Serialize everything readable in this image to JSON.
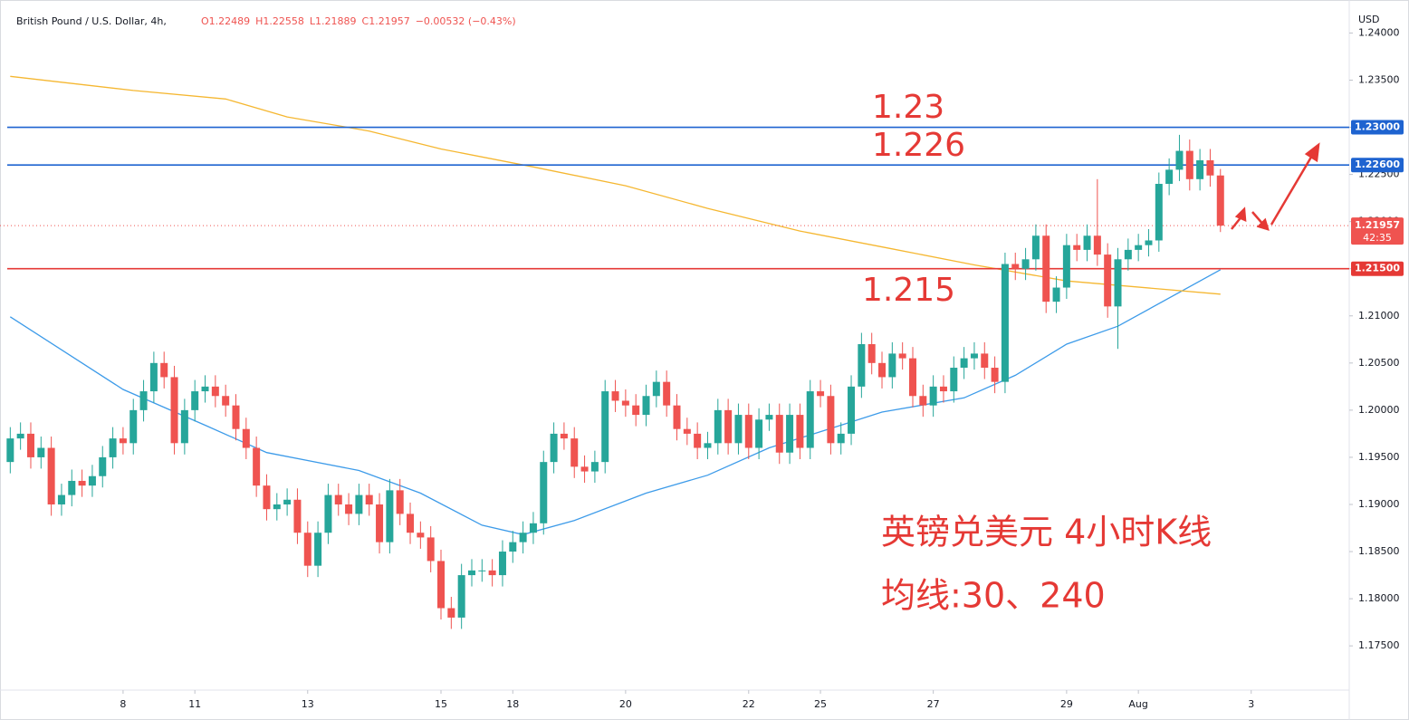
{
  "chart_data": {
    "type": "candlestick",
    "symbol": "British Pound / U.S. Dollar, 4h,",
    "ohlc_text": [
      "O1.22489",
      "H1.22558",
      "L1.21889",
      "C1.21957",
      "−0.00532 (−0.43%)"
    ],
    "currency": "USD",
    "up_color": "#26a69a",
    "down_color": "#ef5350",
    "xlim": [
      -1,
      131
    ],
    "xticks": [
      {
        "value": 11,
        "label": "8"
      },
      {
        "value": 18,
        "label": "11"
      },
      {
        "value": 29,
        "label": "13"
      },
      {
        "value": 42,
        "label": "15"
      },
      {
        "value": 49,
        "label": "18"
      },
      {
        "value": 60,
        "label": "20"
      },
      {
        "value": 72,
        "label": "22"
      },
      {
        "value": 79,
        "label": "25"
      },
      {
        "value": 90,
        "label": "27"
      },
      {
        "value": 103,
        "label": "29"
      },
      {
        "value": 110,
        "label": "Aug"
      },
      {
        "value": 121,
        "label": "3"
      }
    ],
    "ylim": [
      1.1705,
      1.2435
    ],
    "yticks": [
      {
        "value": 1.24,
        "label": "1.24000"
      },
      {
        "value": 1.235,
        "label": "1.23500"
      },
      {
        "value": 1.23,
        "label": "1.23000"
      },
      {
        "value": 1.225,
        "label": "1.22500"
      },
      {
        "value": 1.22,
        "label": "1.22000"
      },
      {
        "value": 1.215,
        "label": "1.21500"
      },
      {
        "value": 1.21,
        "label": "1.21000"
      },
      {
        "value": 1.205,
        "label": "1.20500"
      },
      {
        "value": 1.2,
        "label": "1.20000"
      },
      {
        "value": 1.195,
        "label": "1.19500"
      },
      {
        "value": 1.19,
        "label": "1.19000"
      },
      {
        "value": 1.185,
        "label": "1.18500"
      },
      {
        "value": 1.18,
        "label": "1.18000"
      },
      {
        "value": 1.175,
        "label": "1.17500"
      }
    ],
    "grid": false,
    "open": [
      1.1945,
      1.197,
      1.1975,
      1.195,
      1.196,
      1.19,
      1.191,
      1.1925,
      1.192,
      1.193,
      1.195,
      1.197,
      1.1965,
      1.2,
      1.202,
      1.205,
      1.2035,
      1.1965,
      1.2,
      1.202,
      1.2025,
      1.2015,
      1.2005,
      1.198,
      1.196,
      1.192,
      1.1895,
      1.19,
      1.1905,
      1.187,
      1.1835,
      1.187,
      1.191,
      1.19,
      1.189,
      1.191,
      1.19,
      1.186,
      1.1915,
      1.189,
      1.187,
      1.1865,
      1.184,
      1.179,
      1.178,
      1.1825,
      1.183,
      1.183,
      1.1825,
      1.185,
      1.186,
      1.187,
      1.188,
      1.1945,
      1.1975,
      1.197,
      1.194,
      1.1935,
      1.1945,
      1.202,
      1.201,
      1.2005,
      1.1995,
      1.2015,
      1.203,
      1.2005,
      1.198,
      1.1975,
      1.196,
      1.1965,
      1.2,
      1.1965,
      1.1995,
      1.196,
      1.199,
      1.1995,
      1.1955,
      1.1995,
      1.196,
      1.202,
      1.2015,
      1.1965,
      1.1975,
      1.2025,
      1.207,
      1.205,
      1.2035,
      1.206,
      1.2055,
      1.2015,
      1.2005,
      1.2025,
      1.202,
      1.2045,
      1.2055,
      1.206,
      1.2045,
      1.203,
      1.2155,
      1.215,
      1.216,
      1.2185,
      1.2115,
      1.213,
      1.2175,
      1.217,
      1.2185,
      1.2165,
      1.211,
      1.216,
      1.217,
      1.2175,
      1.218,
      1.224,
      1.2255,
      1.2275,
      1.2245,
      1.2265,
      1.22489
    ],
    "high": [
      1.1982,
      1.1987,
      1.1987,
      1.1972,
      1.1972,
      1.1922,
      1.1937,
      1.1937,
      1.1942,
      1.1962,
      1.1982,
      1.1982,
      1.2012,
      1.2032,
      1.2062,
      1.2062,
      1.2047,
      1.2012,
      1.2032,
      1.2037,
      1.2037,
      1.2027,
      1.2017,
      1.1992,
      1.1972,
      1.1932,
      1.1912,
      1.1917,
      1.1917,
      1.1882,
      1.1882,
      1.1922,
      1.1922,
      1.1912,
      1.1922,
      1.1922,
      1.1912,
      1.1927,
      1.1927,
      1.1902,
      1.1882,
      1.1877,
      1.1852,
      1.1802,
      1.1837,
      1.1842,
      1.1842,
      1.1842,
      1.1862,
      1.1872,
      1.1882,
      1.1892,
      1.1957,
      1.1987,
      1.1987,
      1.1982,
      1.1952,
      1.1957,
      1.2032,
      1.2032,
      1.2022,
      1.2017,
      1.2027,
      1.2042,
      1.2042,
      1.2017,
      1.1992,
      1.1987,
      1.1977,
      1.2012,
      1.2012,
      1.2007,
      1.2007,
      1.2002,
      1.2007,
      1.2007,
      1.2007,
      1.2007,
      1.2032,
      1.2032,
      1.2027,
      1.1987,
      1.2037,
      1.2082,
      1.2082,
      1.2062,
      1.2072,
      1.2072,
      1.2067,
      1.2027,
      1.2037,
      1.2037,
      1.2057,
      1.2067,
      1.2072,
      1.2072,
      1.2057,
      1.2167,
      1.2167,
      1.2172,
      1.2197,
      1.2197,
      1.2142,
      1.2187,
      1.2187,
      1.2197,
      1.2245,
      1.2177,
      1.2172,
      1.2182,
      1.2187,
      1.2192,
      1.2252,
      1.2267,
      1.2292,
      1.2287,
      1.2277,
      1.2277,
      1.22558
    ],
    "low": [
      1.1933,
      1.1958,
      1.1938,
      1.1938,
      1.1888,
      1.1888,
      1.1898,
      1.1908,
      1.1908,
      1.1918,
      1.1938,
      1.1953,
      1.1953,
      1.1988,
      1.2008,
      1.2023,
      1.1953,
      1.1953,
      1.1988,
      1.2008,
      1.2003,
      1.1993,
      1.1968,
      1.1948,
      1.1908,
      1.1883,
      1.1883,
      1.1888,
      1.1858,
      1.1823,
      1.1823,
      1.1858,
      1.1888,
      1.1878,
      1.1878,
      1.1888,
      1.1848,
      1.1848,
      1.1878,
      1.1858,
      1.1853,
      1.1828,
      1.1778,
      1.1768,
      1.1768,
      1.1813,
      1.1818,
      1.1813,
      1.1813,
      1.1838,
      1.1848,
      1.1858,
      1.1868,
      1.1933,
      1.1958,
      1.1928,
      1.1923,
      1.1923,
      1.1933,
      1.1998,
      1.1993,
      1.1983,
      1.1983,
      1.2003,
      1.1993,
      1.1968,
      1.1963,
      1.1948,
      1.1948,
      1.1953,
      1.1953,
      1.1953,
      1.1948,
      1.1948,
      1.1978,
      1.1943,
      1.1943,
      1.1948,
      1.1948,
      1.2003,
      1.1953,
      1.1953,
      1.1963,
      1.2013,
      1.2038,
      1.2023,
      1.2023,
      1.2043,
      1.2003,
      1.1993,
      1.1993,
      1.2008,
      1.2008,
      1.2033,
      1.2043,
      1.2033,
      1.2018,
      1.2018,
      1.2138,
      1.2138,
      1.2148,
      1.2103,
      1.2103,
      1.2118,
      1.2158,
      1.2158,
      1.2153,
      1.2098,
      1.2065,
      1.2148,
      1.2158,
      1.2163,
      1.2168,
      1.2228,
      1.2243,
      1.2233,
      1.2233,
      1.2237,
      1.21889
    ],
    "close": [
      1.197,
      1.1975,
      1.195,
      1.196,
      1.19,
      1.191,
      1.1925,
      1.192,
      1.193,
      1.195,
      1.197,
      1.1965,
      1.2,
      1.202,
      1.205,
      1.2035,
      1.1965,
      1.2,
      1.202,
      1.2025,
      1.2015,
      1.2005,
      1.198,
      1.196,
      1.192,
      1.1895,
      1.19,
      1.1905,
      1.187,
      1.1835,
      1.187,
      1.191,
      1.19,
      1.189,
      1.191,
      1.19,
      1.186,
      1.1915,
      1.189,
      1.187,
      1.1865,
      1.184,
      1.179,
      1.178,
      1.1825,
      1.183,
      1.183,
      1.1825,
      1.185,
      1.186,
      1.187,
      1.188,
      1.1945,
      1.1975,
      1.197,
      1.194,
      1.1935,
      1.1945,
      1.202,
      1.201,
      1.2005,
      1.1995,
      1.2015,
      1.203,
      1.2005,
      1.198,
      1.1975,
      1.196,
      1.1965,
      1.2,
      1.1965,
      1.1995,
      1.196,
      1.199,
      1.1995,
      1.1955,
      1.1995,
      1.196,
      1.202,
      1.2015,
      1.1965,
      1.1975,
      1.2025,
      1.207,
      1.205,
      1.2035,
      1.206,
      1.2055,
      1.2015,
      1.2005,
      1.2025,
      1.202,
      1.2045,
      1.2055,
      1.206,
      1.2045,
      1.203,
      1.2155,
      1.215,
      1.216,
      1.2185,
      1.2115,
      1.213,
      1.2175,
      1.217,
      1.2185,
      1.2165,
      1.211,
      1.216,
      1.217,
      1.2175,
      1.218,
      1.224,
      1.2255,
      1.2275,
      1.2245,
      1.2265,
      1.22489,
      1.21957
    ],
    "ma_lines": [
      {
        "color": "#3d9be9",
        "x": [
          0,
          11,
          19,
          25,
          34,
          40,
          46,
          50,
          55,
          62,
          68,
          74,
          81,
          85,
          93,
          98,
          103,
          108,
          118
        ],
        "values": [
          1.2099,
          1.2022,
          1.1984,
          1.1955,
          1.1936,
          1.1912,
          1.1878,
          1.1868,
          1.1883,
          1.1912,
          1.1931,
          1.196,
          1.1984,
          1.1998,
          1.2013,
          1.2037,
          1.207,
          1.2089,
          1.2149
        ]
      },
      {
        "color": "#f5b731",
        "x": [
          0,
          12,
          21,
          27,
          35,
          42,
          51,
          60,
          68,
          77,
          86,
          94,
          103,
          118
        ],
        "values": [
          1.2354,
          1.2339,
          1.233,
          1.2311,
          1.2296,
          1.2277,
          1.2258,
          1.2238,
          1.2214,
          1.219,
          1.2171,
          1.2154,
          1.2137,
          1.2123
        ]
      }
    ],
    "levels": [
      {
        "value": 1.23,
        "label": "1.23000",
        "annotation": "1.23",
        "color": "#1e63d0"
      },
      {
        "value": 1.226,
        "label": "1.22600",
        "annotation": "1.226",
        "color": "#1e63d0"
      },
      {
        "value": 1.215,
        "label": "1.21500",
        "annotation": "1.215",
        "color": "#e53935"
      }
    ],
    "last_price": {
      "value": 1.21957,
      "label": "1.21957",
      "countdown": "42:35",
      "color": "#ef5350"
    },
    "notes": [
      "英镑兑美元 4小时K线",
      "均线:30、240"
    ]
  }
}
